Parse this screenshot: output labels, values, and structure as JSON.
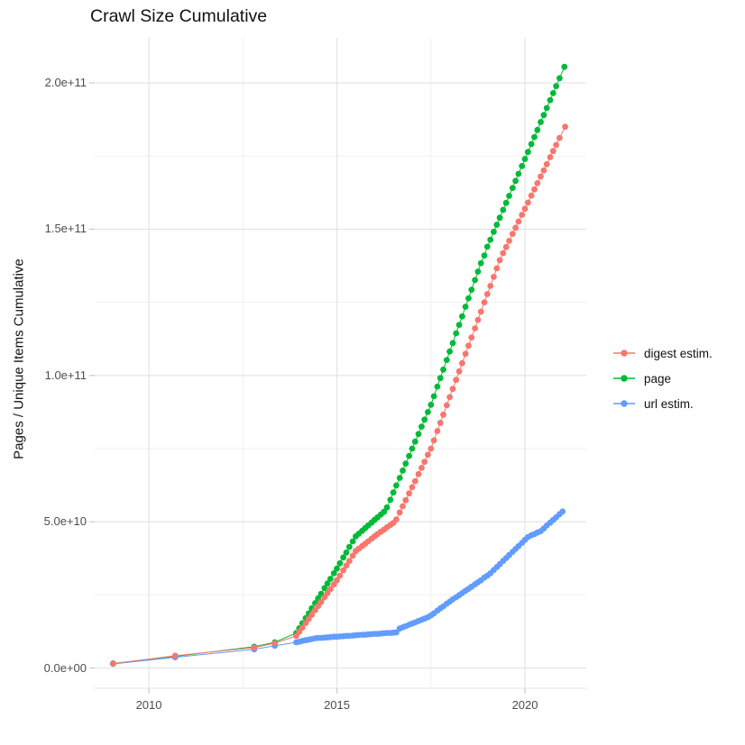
{
  "title": "Crawl Size Cumulative",
  "y_axis": {
    "label": "Pages / Unique Items Cumulative",
    "ticks": [
      {
        "label": "0.0e+00",
        "value_e9": 0
      },
      {
        "label": "5.0e+10",
        "value_e9": 50
      },
      {
        "label": "1.0e+11",
        "value_e9": 100
      },
      {
        "label": "1.5e+11",
        "value_e9": 150
      },
      {
        "label": "2.0e+11",
        "value_e9": 200
      }
    ],
    "minor_tick_values_e9": [
      25,
      75,
      125,
      175
    ]
  },
  "x_axis": {
    "ticks": [
      {
        "label": "2010",
        "value": 2010
      },
      {
        "label": "2015",
        "value": 2015
      },
      {
        "label": "2020",
        "value": 2020
      }
    ],
    "minor_tick_values": [
      2012.5,
      2017.5
    ]
  },
  "legend": {
    "items": [
      {
        "label": "digest estim.",
        "color": "#F8766D"
      },
      {
        "label": "page",
        "color": "#00BA38"
      },
      {
        "label": "url estim.",
        "color": "#619CFF"
      }
    ]
  },
  "colors": {
    "digest": "#F8766D",
    "page": "#00BA38",
    "url": "#619CFF",
    "grid_major": "#E3E3E3",
    "grid_minor": "#EFEFEF",
    "axis_tick": "#C9C9C9",
    "tick_text": "#4d4d4d",
    "title_text": "#111111"
  },
  "chart_data": {
    "type": "scatter",
    "style": "points-connected-by-lines",
    "title": "Crawl Size Cumulative",
    "xlabel": "",
    "ylabel": "Pages / Unique Items Cumulative",
    "x_unit": "year",
    "y_unit": "cumulative count, values in billions (1e9); axis labels shown in scientific notation",
    "xlim": [
      2008.56,
      2021.63
    ],
    "ylim_e9": [
      -6.9,
      215.4
    ],
    "grid": "major and minor gridlines on white panel",
    "legend_position": "right-center",
    "draw_order": [
      "page",
      "url estim.",
      "digest estim."
    ],
    "series": [
      {
        "name": "digest estim.",
        "color": "#F8766D",
        "points_year_value_e9": [
          [
            2009.05,
            1.5
          ],
          [
            2010.7,
            4.2
          ],
          [
            2012.8,
            7.0
          ],
          [
            2013.35,
            8.5
          ],
          [
            2013.92,
            11.0
          ],
          [
            2014.0,
            12.4
          ],
          [
            2014.08,
            13.8
          ],
          [
            2014.17,
            15.4
          ],
          [
            2014.25,
            16.8
          ],
          [
            2014.33,
            18.2
          ],
          [
            2014.42,
            19.8
          ],
          [
            2014.5,
            21.2
          ],
          [
            2014.58,
            22.6
          ],
          [
            2014.67,
            24.2
          ],
          [
            2014.75,
            25.6
          ],
          [
            2014.83,
            27.0
          ],
          [
            2014.92,
            28.6
          ],
          [
            2015.0,
            30.0
          ],
          [
            2015.08,
            31.6
          ],
          [
            2015.17,
            33.4
          ],
          [
            2015.25,
            35.0
          ],
          [
            2015.33,
            36.6
          ],
          [
            2015.42,
            38.4
          ],
          [
            2015.5,
            40.0
          ],
          [
            2015.58,
            40.8
          ],
          [
            2015.67,
            41.7
          ],
          [
            2015.75,
            42.5
          ],
          [
            2015.83,
            43.3
          ],
          [
            2015.92,
            44.2
          ],
          [
            2016.0,
            45.0
          ],
          [
            2016.08,
            45.8
          ],
          [
            2016.17,
            46.6
          ],
          [
            2016.25,
            47.3
          ],
          [
            2016.33,
            48.1
          ],
          [
            2016.42,
            48.9
          ],
          [
            2016.5,
            49.6
          ],
          [
            2016.58,
            50.8
          ],
          [
            2016.67,
            53.2
          ],
          [
            2016.75,
            55.3
          ],
          [
            2016.83,
            57.4
          ],
          [
            2016.92,
            59.7
          ],
          [
            2017.0,
            61.8
          ],
          [
            2017.08,
            63.9
          ],
          [
            2017.17,
            66.3
          ],
          [
            2017.25,
            68.4
          ],
          [
            2017.33,
            70.5
          ],
          [
            2017.42,
            72.9
          ],
          [
            2017.5,
            75.0
          ],
          [
            2017.58,
            77.8
          ],
          [
            2017.67,
            81.0
          ],
          [
            2017.75,
            83.8
          ],
          [
            2017.83,
            86.6
          ],
          [
            2017.92,
            89.8
          ],
          [
            2018.0,
            92.6
          ],
          [
            2018.08,
            95.4
          ],
          [
            2018.17,
            98.5
          ],
          [
            2018.25,
            101.4
          ],
          [
            2018.33,
            104.2
          ],
          [
            2018.42,
            107.4
          ],
          [
            2018.5,
            110.2
          ],
          [
            2018.58,
            113.0
          ],
          [
            2018.67,
            116.1
          ],
          [
            2018.75,
            119.0
          ],
          [
            2018.83,
            121.8
          ],
          [
            2018.92,
            125.0
          ],
          [
            2019.0,
            127.8
          ],
          [
            2019.08,
            130.6
          ],
          [
            2019.17,
            133.7
          ],
          [
            2019.25,
            136.6
          ],
          [
            2019.33,
            139.4
          ],
          [
            2019.42,
            141.8
          ],
          [
            2019.5,
            143.9
          ],
          [
            2019.58,
            146.0
          ],
          [
            2019.67,
            148.4
          ],
          [
            2019.75,
            150.5
          ],
          [
            2019.83,
            152.6
          ],
          [
            2019.92,
            154.9
          ],
          [
            2020.0,
            157.0
          ],
          [
            2020.08,
            159.1
          ],
          [
            2020.17,
            161.5
          ],
          [
            2020.25,
            163.6
          ],
          [
            2020.33,
            165.7
          ],
          [
            2020.42,
            168.0
          ],
          [
            2020.5,
            170.1
          ],
          [
            2020.58,
            172.2
          ],
          [
            2020.67,
            174.6
          ],
          [
            2020.75,
            176.7
          ],
          [
            2020.83,
            178.8
          ],
          [
            2020.92,
            181.2
          ],
          [
            2021.07,
            185.0
          ]
        ]
      },
      {
        "name": "page",
        "color": "#00BA38",
        "points_year_value_e9": [
          [
            2009.05,
            1.6
          ],
          [
            2010.7,
            4.0
          ],
          [
            2012.8,
            7.3
          ],
          [
            2013.35,
            8.8
          ],
          [
            2013.92,
            12.0
          ],
          [
            2014.0,
            13.6
          ],
          [
            2014.08,
            15.3
          ],
          [
            2014.17,
            17.1
          ],
          [
            2014.25,
            18.7
          ],
          [
            2014.33,
            20.4
          ],
          [
            2014.42,
            22.2
          ],
          [
            2014.5,
            23.8
          ],
          [
            2014.58,
            25.4
          ],
          [
            2014.67,
            27.3
          ],
          [
            2014.75,
            28.9
          ],
          [
            2014.83,
            30.5
          ],
          [
            2014.92,
            32.4
          ],
          [
            2015.0,
            34.0
          ],
          [
            2015.08,
            35.8
          ],
          [
            2015.17,
            37.8
          ],
          [
            2015.25,
            39.5
          ],
          [
            2015.33,
            41.4
          ],
          [
            2015.42,
            43.3
          ],
          [
            2015.5,
            45.0
          ],
          [
            2015.58,
            45.9
          ],
          [
            2015.67,
            46.9
          ],
          [
            2015.75,
            47.8
          ],
          [
            2015.83,
            48.7
          ],
          [
            2015.92,
            49.7
          ],
          [
            2016.0,
            50.6
          ],
          [
            2016.08,
            51.5
          ],
          [
            2016.17,
            52.5
          ],
          [
            2016.25,
            53.4
          ],
          [
            2016.33,
            54.9
          ],
          [
            2016.42,
            57.5
          ],
          [
            2016.5,
            60.0
          ],
          [
            2016.58,
            62.4
          ],
          [
            2016.67,
            65.0
          ],
          [
            2016.75,
            67.5
          ],
          [
            2016.83,
            69.9
          ],
          [
            2016.92,
            72.5
          ],
          [
            2017.0,
            75.0
          ],
          [
            2017.08,
            77.4
          ],
          [
            2017.17,
            80.0
          ],
          [
            2017.25,
            82.5
          ],
          [
            2017.33,
            84.9
          ],
          [
            2017.42,
            87.5
          ],
          [
            2017.5,
            90.0
          ],
          [
            2017.58,
            92.9
          ],
          [
            2017.67,
            96.2
          ],
          [
            2017.75,
            99.1
          ],
          [
            2017.83,
            102.0
          ],
          [
            2017.92,
            105.3
          ],
          [
            2018.0,
            108.2
          ],
          [
            2018.08,
            111.1
          ],
          [
            2018.17,
            114.4
          ],
          [
            2018.25,
            117.3
          ],
          [
            2018.33,
            120.2
          ],
          [
            2018.42,
            123.5
          ],
          [
            2018.5,
            126.4
          ],
          [
            2018.58,
            129.3
          ],
          [
            2018.67,
            132.6
          ],
          [
            2018.75,
            135.5
          ],
          [
            2018.83,
            138.4
          ],
          [
            2018.92,
            141.0
          ],
          [
            2019.0,
            144.0
          ],
          [
            2019.08,
            146.4
          ],
          [
            2019.17,
            149.1
          ],
          [
            2019.25,
            151.5
          ],
          [
            2019.33,
            153.9
          ],
          [
            2019.42,
            156.6
          ],
          [
            2019.5,
            159.0
          ],
          [
            2019.58,
            161.4
          ],
          [
            2019.67,
            164.1
          ],
          [
            2019.75,
            166.5
          ],
          [
            2019.83,
            168.9
          ],
          [
            2019.92,
            171.6
          ],
          [
            2020.0,
            174.0
          ],
          [
            2020.08,
            176.4
          ],
          [
            2020.17,
            179.1
          ],
          [
            2020.25,
            181.5
          ],
          [
            2020.33,
            183.9
          ],
          [
            2020.42,
            186.6
          ],
          [
            2020.5,
            189.0
          ],
          [
            2020.58,
            191.4
          ],
          [
            2020.67,
            194.1
          ],
          [
            2020.75,
            196.5
          ],
          [
            2020.83,
            198.9
          ],
          [
            2020.92,
            201.6
          ],
          [
            2021.05,
            205.5
          ]
        ]
      },
      {
        "name": "url estim.",
        "color": "#619CFF",
        "points_year_value_e9": [
          [
            2009.05,
            1.4
          ],
          [
            2010.7,
            3.7
          ],
          [
            2012.8,
            6.4
          ],
          [
            2013.35,
            7.6
          ],
          [
            2013.92,
            8.8
          ],
          [
            2014.0,
            9.0
          ],
          [
            2014.08,
            9.3
          ],
          [
            2014.17,
            9.5
          ],
          [
            2014.25,
            9.7
          ],
          [
            2014.33,
            9.9
          ],
          [
            2014.42,
            10.2
          ],
          [
            2014.5,
            10.3
          ],
          [
            2014.58,
            10.3
          ],
          [
            2014.67,
            10.4
          ],
          [
            2014.75,
            10.5
          ],
          [
            2014.83,
            10.6
          ],
          [
            2014.92,
            10.7
          ],
          [
            2015.0,
            10.7
          ],
          [
            2015.08,
            10.8
          ],
          [
            2015.17,
            10.9
          ],
          [
            2015.25,
            11.0
          ],
          [
            2015.33,
            11.0
          ],
          [
            2015.42,
            11.1
          ],
          [
            2015.5,
            11.2
          ],
          [
            2015.58,
            11.3
          ],
          [
            2015.67,
            11.4
          ],
          [
            2015.75,
            11.4
          ],
          [
            2015.83,
            11.5
          ],
          [
            2015.92,
            11.6
          ],
          [
            2016.0,
            11.7
          ],
          [
            2016.08,
            11.7
          ],
          [
            2016.17,
            11.8
          ],
          [
            2016.25,
            11.9
          ],
          [
            2016.33,
            12.0
          ],
          [
            2016.42,
            12.0
          ],
          [
            2016.5,
            12.1
          ],
          [
            2016.58,
            12.2
          ],
          [
            2016.67,
            13.5
          ],
          [
            2016.75,
            13.9
          ],
          [
            2016.83,
            14.3
          ],
          [
            2016.92,
            14.8
          ],
          [
            2017.0,
            15.2
          ],
          [
            2017.08,
            15.6
          ],
          [
            2017.17,
            16.1
          ],
          [
            2017.25,
            16.5
          ],
          [
            2017.33,
            16.9
          ],
          [
            2017.42,
            17.4
          ],
          [
            2017.5,
            18.0
          ],
          [
            2017.58,
            18.7
          ],
          [
            2017.67,
            19.6
          ],
          [
            2017.75,
            20.4
          ],
          [
            2017.83,
            21.1
          ],
          [
            2017.92,
            22.0
          ],
          [
            2018.0,
            22.7
          ],
          [
            2018.08,
            23.5
          ],
          [
            2018.17,
            24.2
          ],
          [
            2018.25,
            24.9
          ],
          [
            2018.33,
            25.6
          ],
          [
            2018.42,
            26.4
          ],
          [
            2018.5,
            27.1
          ],
          [
            2018.58,
            27.8
          ],
          [
            2018.67,
            28.6
          ],
          [
            2018.75,
            29.3
          ],
          [
            2018.83,
            30.0
          ],
          [
            2018.92,
            30.9
          ],
          [
            2019.0,
            31.6
          ],
          [
            2019.08,
            32.4
          ],
          [
            2019.17,
            33.5
          ],
          [
            2019.25,
            34.5
          ],
          [
            2019.33,
            35.5
          ],
          [
            2019.42,
            36.6
          ],
          [
            2019.5,
            37.6
          ],
          [
            2019.58,
            38.6
          ],
          [
            2019.67,
            39.7
          ],
          [
            2019.75,
            40.7
          ],
          [
            2019.83,
            41.7
          ],
          [
            2019.92,
            42.8
          ],
          [
            2020.0,
            43.8
          ],
          [
            2020.08,
            44.8
          ],
          [
            2020.17,
            45.4
          ],
          [
            2020.25,
            45.8
          ],
          [
            2020.33,
            46.3
          ],
          [
            2020.42,
            46.8
          ],
          [
            2020.5,
            47.7
          ],
          [
            2020.58,
            48.7
          ],
          [
            2020.67,
            49.7
          ],
          [
            2020.75,
            50.6
          ],
          [
            2020.83,
            51.5
          ],
          [
            2020.92,
            52.6
          ],
          [
            2021.0,
            53.5
          ]
        ]
      }
    ]
  }
}
